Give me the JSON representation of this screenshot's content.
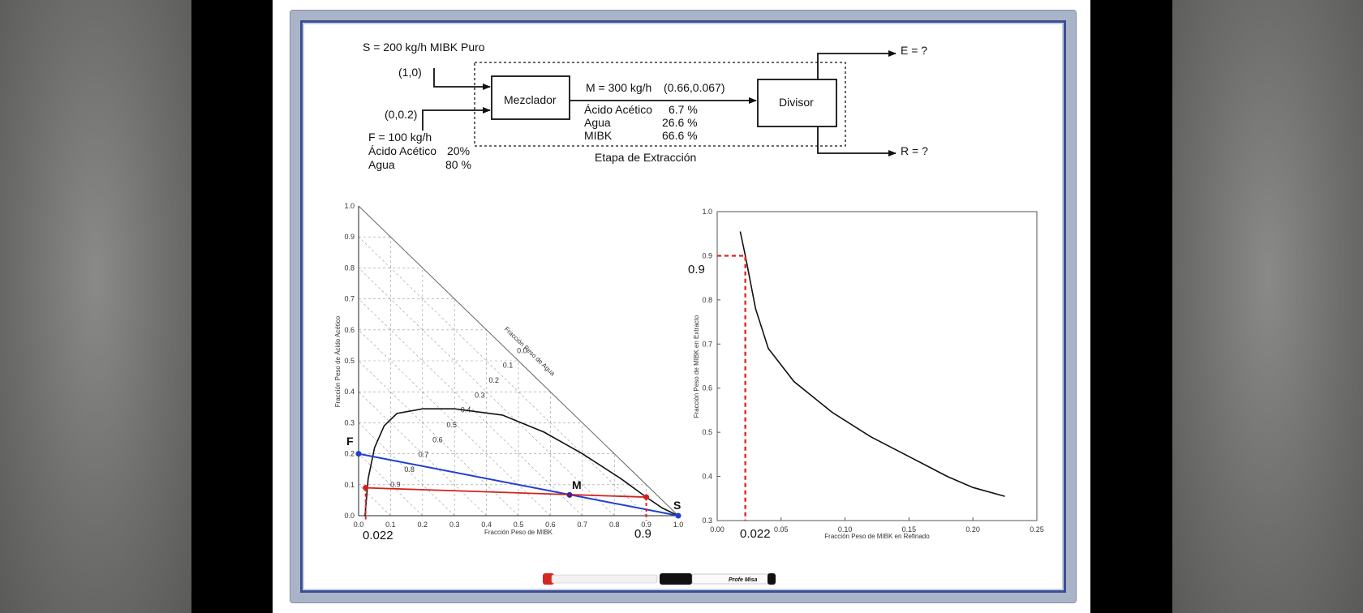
{
  "flowsheet": {
    "solvent_label": "S = 200 kg/h MIBK Puro",
    "solvent_coord": "(1,0)",
    "feed_coord": "(0,0.2)",
    "feed_rate": "F = 100 kg/h",
    "feed_acetic_name": "Ácido Acético",
    "feed_acetic_pct": "20%",
    "feed_water_name": "Agua",
    "feed_water_pct": "80 %",
    "mixer_label": "Mezclador",
    "mix_rate": "M = 300 kg/h",
    "mix_coord": "(0.66,0.067)",
    "mix_acetic_name": "Ácido Acético",
    "mix_acetic_pct": "6.7 %",
    "mix_water_name": "Agua",
    "mix_water_pct": "26.6 %",
    "mix_mibk_name": "MIBK",
    "mix_mibk_pct": "66.6 %",
    "divider_label": "Divisor",
    "extract_label": "E = ?",
    "raffinate_label": "R = ?",
    "stage_label": "Etapa de Extracción"
  },
  "ternary": {
    "x_ticks": [
      "0.0",
      "0.1",
      "0.2",
      "0.3",
      "0.4",
      "0.5",
      "0.6",
      "0.7",
      "0.8",
      "0.9",
      "1.0"
    ],
    "y_ticks": [
      "0.0",
      "0.1",
      "0.2",
      "0.3",
      "0.4",
      "0.5",
      "0.6",
      "0.7",
      "0.8",
      "0.9",
      "1.0"
    ],
    "water_ticks": [
      "0.0",
      "0.1",
      "0.2",
      "0.3",
      "0.4",
      "0.5",
      "0.6",
      "0.7",
      "0.8",
      "0.9"
    ],
    "xlabel": "Fracción Peso de MIBK",
    "ylabel": "Fracción Peso de Ácido Acético",
    "hyp_label": "Fracción Peso de Agua",
    "point_F": "F",
    "point_M": "M",
    "point_S": "S",
    "raffinate_x_label": "0.022",
    "extract_x_label": "0.9",
    "colors": {
      "binodal": "#111111",
      "mixing_line": "#1f3fcf",
      "tie_line": "#d42020",
      "guide": "#e02a1e"
    }
  },
  "distribution": {
    "x_ticks": [
      "0.00",
      "0.05",
      "0.10",
      "0.15",
      "0.20",
      "0.25"
    ],
    "y_ticks": [
      "0.3",
      "0.4",
      "0.5",
      "0.6",
      "0.7",
      "0.8",
      "0.9",
      "1.0"
    ],
    "xlabel": "Fracción Peso de MIBK en Refinado",
    "ylabel": "Fracción Peso de MIBK en Extracto",
    "read_y_label": "0.9",
    "read_x_label": "0.022"
  },
  "marker": {
    "brand": "Profe Misa"
  },
  "chart_data": [
    {
      "type": "scatter",
      "title": "",
      "xlabel": "Fracción Peso de MIBK",
      "ylabel": "Fracción Peso de Ácido Acético",
      "xlim": [
        0,
        1
      ],
      "ylim": [
        0,
        1
      ],
      "grid": true,
      "series": [
        {
          "x": [
            0.02,
            0.03,
            0.05,
            0.08,
            0.12,
            0.2,
            0.3,
            0.45,
            0.58,
            0.7,
            0.82,
            0.9,
            0.95,
            1.0
          ],
          "y": [
            0.0,
            0.12,
            0.22,
            0.29,
            0.33,
            0.345,
            0.345,
            0.325,
            0.27,
            0.2,
            0.12,
            0.06,
            0.025,
            0.0
          ]
        },
        {
          "name": "F",
          "x": [
            0.0
          ],
          "y": [
            0.2
          ]
        },
        {
          "name": "M",
          "x": [
            0.66
          ],
          "y": [
            0.067
          ]
        },
        {
          "name": "S",
          "x": [
            1.0
          ],
          "y": [
            0.0
          ]
        },
        {
          "x": [
            0.022,
            0.9
          ],
          "y": [
            0.09,
            0.06
          ]
        }
      ]
    },
    {
      "type": "line",
      "title": "",
      "xlabel": "Fracción Peso de MIBK en Refinado",
      "ylabel": "Fracción Peso de MIBK en Extracto",
      "xlim": [
        0,
        0.25
      ],
      "ylim": [
        0.3,
        1.0
      ],
      "grid": false,
      "series": [
        {
          "x": [
            0.018,
            0.022,
            0.03,
            0.04,
            0.06,
            0.09,
            0.12,
            0.15,
            0.18,
            0.2,
            0.225
          ],
          "y": [
            0.955,
            0.9,
            0.78,
            0.69,
            0.615,
            0.545,
            0.49,
            0.445,
            0.4,
            0.375,
            0.355
          ]
        },
        {
          "x": [
            0.022
          ],
          "y": [
            0.9
          ]
        }
      ]
    }
  ]
}
